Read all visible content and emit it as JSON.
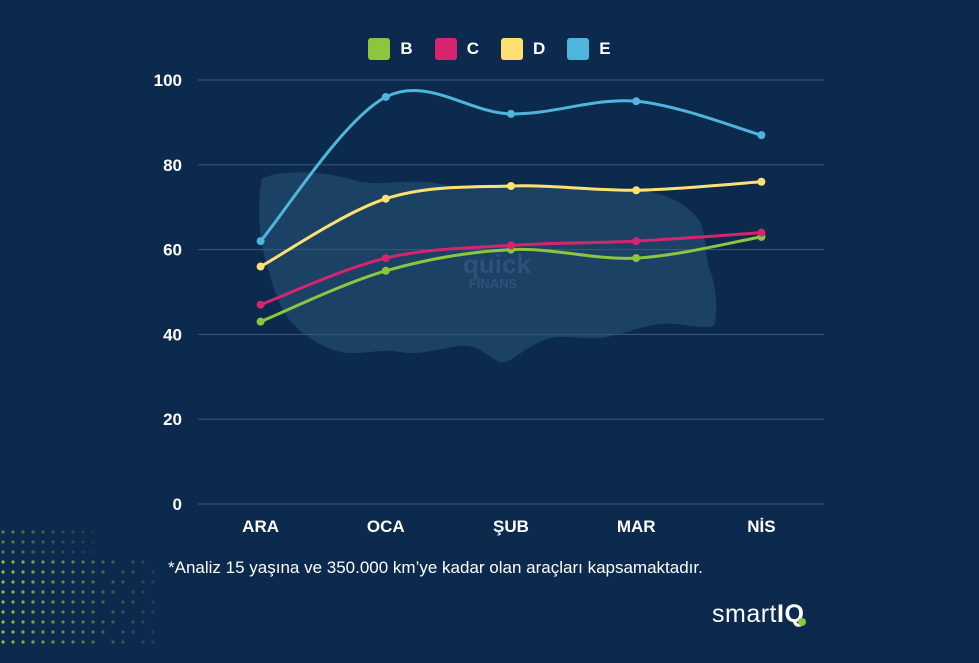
{
  "colors": {
    "background": "#0b2a4e",
    "grid": "#3c5a7c",
    "text": "#ffffff",
    "map": "#1d4568",
    "B": "#8cc63f",
    "C": "#d6246e",
    "D": "#ffe070",
    "E": "#4fb5dc"
  },
  "watermark": {
    "line1": "quick",
    "line2": "FİNANS"
  },
  "footnote": "*Analiz 15 yaşına ve 350.000 km’ye kadar olan araçları kapsamaktadır.",
  "brand": {
    "prefix": "smart",
    "suffix": "IQ"
  },
  "chart_data": {
    "type": "line",
    "title": "",
    "xlabel": "",
    "ylabel": "",
    "categories": [
      "ARA",
      "OCA",
      "ŞUB",
      "MAR",
      "NİS"
    ],
    "ylim": [
      0,
      100
    ],
    "yticks": [
      0,
      20,
      40,
      60,
      80,
      100
    ],
    "grid": true,
    "legend_position": "top-center",
    "series": [
      {
        "name": "B",
        "color": "#8cc63f",
        "values": [
          43,
          55,
          60,
          58,
          63
        ]
      },
      {
        "name": "C",
        "color": "#d6246e",
        "values": [
          47,
          58,
          61,
          62,
          64
        ]
      },
      {
        "name": "D",
        "color": "#ffe070",
        "values": [
          56,
          72,
          75,
          74,
          76
        ]
      },
      {
        "name": "E",
        "color": "#4fb5dc",
        "values": [
          62,
          96,
          92,
          95,
          87
        ]
      }
    ]
  }
}
